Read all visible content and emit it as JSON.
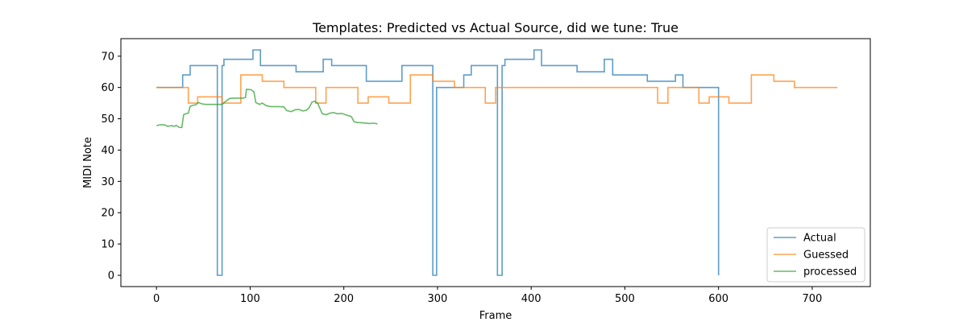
{
  "chart_data": {
    "type": "line",
    "title": "Templates: Predicted vs Actual Source, did we tune: True",
    "xlabel": "Frame",
    "ylabel": "MIDI Note",
    "xlim": [
      -38,
      762
    ],
    "ylim": [
      -3.6,
      75.6
    ],
    "xticks": [
      0,
      100,
      200,
      300,
      400,
      500,
      600,
      700
    ],
    "yticks": [
      0,
      10,
      20,
      30,
      40,
      50,
      60,
      70
    ],
    "grid": false,
    "legend_position": "lower-right",
    "series": [
      {
        "name": "Actual",
        "color": "#1f77b4",
        "points": [
          [
            0,
            60
          ],
          [
            28,
            60
          ],
          [
            28,
            64
          ],
          [
            36,
            64
          ],
          [
            36,
            67
          ],
          [
            65,
            67
          ],
          [
            65,
            0
          ],
          [
            70,
            0
          ],
          [
            70,
            67
          ],
          [
            72,
            67
          ],
          [
            72,
            69
          ],
          [
            103,
            69
          ],
          [
            103,
            72
          ],
          [
            111,
            72
          ],
          [
            111,
            67
          ],
          [
            149,
            67
          ],
          [
            149,
            65
          ],
          [
            178,
            65
          ],
          [
            178,
            69
          ],
          [
            187,
            69
          ],
          [
            187,
            67
          ],
          [
            224,
            67
          ],
          [
            224,
            62
          ],
          [
            262,
            62
          ],
          [
            262,
            67
          ],
          [
            295,
            67
          ],
          [
            295,
            0
          ],
          [
            299,
            0
          ],
          [
            299,
            60
          ],
          [
            328,
            60
          ],
          [
            328,
            64
          ],
          [
            336,
            64
          ],
          [
            336,
            67
          ],
          [
            364,
            67
          ],
          [
            364,
            0
          ],
          [
            369,
            0
          ],
          [
            369,
            67
          ],
          [
            372,
            67
          ],
          [
            372,
            69
          ],
          [
            403,
            69
          ],
          [
            403,
            72
          ],
          [
            411,
            72
          ],
          [
            411,
            67
          ],
          [
            449,
            67
          ],
          [
            449,
            65
          ],
          [
            478,
            65
          ],
          [
            478,
            69
          ],
          [
            487,
            69
          ],
          [
            487,
            64
          ],
          [
            524,
            64
          ],
          [
            524,
            62
          ],
          [
            554,
            62
          ],
          [
            554,
            64
          ],
          [
            562,
            64
          ],
          [
            562,
            60
          ],
          [
            600,
            60
          ],
          [
            600,
            0
          ]
        ]
      },
      {
        "name": "Guessed",
        "color": "#ff7f0e",
        "points": [
          [
            0,
            60
          ],
          [
            34,
            60
          ],
          [
            34,
            55
          ],
          [
            44,
            55
          ],
          [
            44,
            57
          ],
          [
            70,
            57
          ],
          [
            70,
            55
          ],
          [
            90,
            55
          ],
          [
            90,
            64
          ],
          [
            113,
            64
          ],
          [
            113,
            62
          ],
          [
            136,
            62
          ],
          [
            136,
            60
          ],
          [
            170,
            60
          ],
          [
            170,
            55
          ],
          [
            181,
            55
          ],
          [
            181,
            60
          ],
          [
            215,
            60
          ],
          [
            215,
            55
          ],
          [
            226,
            55
          ],
          [
            226,
            57
          ],
          [
            248,
            57
          ],
          [
            248,
            55
          ],
          [
            271,
            55
          ],
          [
            271,
            64
          ],
          [
            295,
            64
          ],
          [
            295,
            62
          ],
          [
            318,
            62
          ],
          [
            318,
            60
          ],
          [
            351,
            60
          ],
          [
            351,
            55
          ],
          [
            362,
            55
          ],
          [
            362,
            60
          ],
          [
            535,
            60
          ],
          [
            535,
            55
          ],
          [
            546,
            55
          ],
          [
            546,
            60
          ],
          [
            579,
            60
          ],
          [
            579,
            55
          ],
          [
            590,
            55
          ],
          [
            590,
            57
          ],
          [
            611,
            57
          ],
          [
            611,
            55
          ],
          [
            635,
            55
          ],
          [
            635,
            64
          ],
          [
            659,
            64
          ],
          [
            659,
            62
          ],
          [
            681,
            62
          ],
          [
            681,
            60
          ],
          [
            727,
            60
          ]
        ]
      },
      {
        "name": "processed",
        "color": "#2ca02c",
        "points": [
          [
            0,
            47.8
          ],
          [
            4,
            48.1
          ],
          [
            9,
            48.0
          ],
          [
            12,
            47.6
          ],
          [
            16,
            47.8
          ],
          [
            19,
            47.6
          ],
          [
            21,
            47.9
          ],
          [
            24,
            47.3
          ],
          [
            27,
            47.2
          ],
          [
            29,
            51.3
          ],
          [
            31,
            51.6
          ],
          [
            34,
            51.8
          ],
          [
            36,
            54.0
          ],
          [
            39,
            54.3
          ],
          [
            42,
            54.5
          ],
          [
            45,
            55.2
          ],
          [
            48,
            54.8
          ],
          [
            52,
            54.6
          ],
          [
            60,
            54.6
          ],
          [
            70,
            54.6
          ],
          [
            74,
            55.6
          ],
          [
            78,
            56.5
          ],
          [
            82,
            56.6
          ],
          [
            92,
            56.6
          ],
          [
            95,
            56.8
          ],
          [
            96,
            59.4
          ],
          [
            101,
            59.3
          ],
          [
            104,
            58.6
          ],
          [
            106,
            55.2
          ],
          [
            110,
            54.6
          ],
          [
            113,
            55.0
          ],
          [
            117,
            54.2
          ],
          [
            122,
            53.9
          ],
          [
            130,
            53.9
          ],
          [
            136,
            53.8
          ],
          [
            139,
            52.6
          ],
          [
            144,
            52.3
          ],
          [
            148,
            52.9
          ],
          [
            152,
            53.0
          ],
          [
            156,
            52.5
          ],
          [
            160,
            52.7
          ],
          [
            163,
            53.6
          ],
          [
            166,
            55.3
          ],
          [
            169,
            55.6
          ],
          [
            172,
            55.0
          ],
          [
            174,
            53.6
          ],
          [
            177,
            51.6
          ],
          [
            181,
            51.3
          ],
          [
            185,
            51.8
          ],
          [
            189,
            52.0
          ],
          [
            193,
            51.6
          ],
          [
            198,
            51.7
          ],
          [
            201,
            51.4
          ],
          [
            205,
            51.0
          ],
          [
            208,
            50.7
          ],
          [
            211,
            49.0
          ],
          [
            215,
            48.8
          ],
          [
            220,
            48.7
          ],
          [
            227,
            48.5
          ],
          [
            232,
            48.6
          ],
          [
            236,
            48.4
          ]
        ]
      }
    ]
  }
}
